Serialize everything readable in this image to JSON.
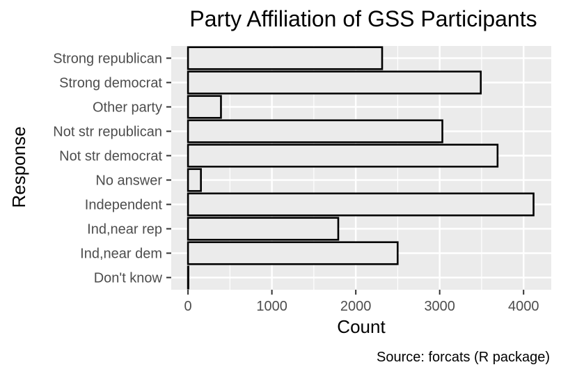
{
  "chart_data": {
    "type": "bar",
    "orientation": "horizontal",
    "title": "Party Affiliation of GSS Participants",
    "xlabel": "Count",
    "ylabel": "Response",
    "caption": "Source: forcats (R package)",
    "categories": [
      "Strong republican",
      "Strong democrat",
      "Other party",
      "Not str republican",
      "Not str democrat",
      "No answer",
      "Independent",
      "Ind,near rep",
      "Ind,near dem",
      "Don't know"
    ],
    "values": [
      2314,
      3490,
      393,
      3032,
      3690,
      154,
      4119,
      1791,
      2499,
      1
    ],
    "xticks": [
      "0",
      "1000",
      "2000",
      "3000",
      "4000"
    ],
    "xtick_values": [
      0,
      1000,
      2000,
      3000,
      4000
    ],
    "xlim": [
      -200,
      4330
    ],
    "grid": true,
    "legend": "none",
    "colors": {
      "panel": "#ebebeb",
      "grid_major": "#ffffff",
      "bar_fill": "#ebebeb",
      "bar_stroke": "#000000",
      "tick_text": "#4d4d4d"
    }
  }
}
